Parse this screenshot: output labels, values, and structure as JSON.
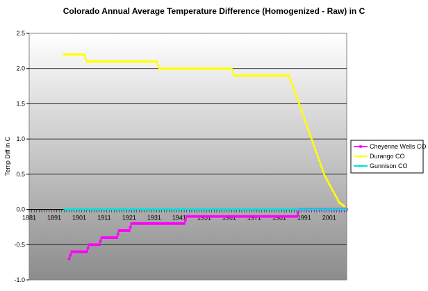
{
  "chart_data": {
    "type": "line",
    "title": "Colorado Annual Average Temperature Difference (Homogenized - Raw) in C",
    "xlabel": "",
    "ylabel": "Temp Diff in C",
    "xlim": [
      1881,
      2008
    ],
    "ylim": [
      -1.0,
      2.5
    ],
    "x_ticks": [
      1881,
      1891,
      1901,
      1911,
      1921,
      1931,
      1941,
      1951,
      1961,
      1971,
      1981,
      1991,
      2001
    ],
    "y_ticks": [
      2.5,
      2.0,
      1.5,
      1.0,
      0.5,
      0.0,
      -0.5,
      -1.0
    ],
    "y_tick_labels": [
      "2.5",
      "2.0",
      "1.5",
      "1.0",
      "0.5",
      "0.0",
      "-0.5",
      "-1.0"
    ],
    "grid": "horizontal",
    "background": "vertical gradient white to gray",
    "legend_position": "right",
    "series": [
      {
        "name": "Cheyenne Wells CO",
        "color": "#ff00ff",
        "marker": "square",
        "points": [
          [
            1897,
            -0.7
          ],
          [
            1898,
            -0.6
          ],
          [
            1904,
            -0.6
          ],
          [
            1905,
            -0.5
          ],
          [
            1909,
            -0.5
          ],
          [
            1910,
            -0.4
          ],
          [
            1916,
            -0.4
          ],
          [
            1917,
            -0.3
          ],
          [
            1921,
            -0.3
          ],
          [
            1922,
            -0.2
          ],
          [
            1943,
            -0.2
          ],
          [
            1944,
            -0.1
          ],
          [
            1988,
            -0.1
          ],
          [
            1989,
            0.0
          ],
          [
            2008,
            0.0
          ]
        ]
      },
      {
        "name": "Durango CO",
        "color": "#ffff00",
        "marker": "triangle",
        "points": [
          [
            1895,
            2.2
          ],
          [
            1903,
            2.2
          ],
          [
            1904,
            2.1
          ],
          [
            1932,
            2.1
          ],
          [
            1933,
            2.0
          ],
          [
            1962,
            2.0
          ],
          [
            1963,
            1.9
          ],
          [
            1985,
            1.9
          ],
          [
            1987,
            1.7
          ],
          [
            1989,
            1.5
          ],
          [
            1991,
            1.3
          ],
          [
            1993,
            1.1
          ],
          [
            1995,
            0.9
          ],
          [
            1997,
            0.7
          ],
          [
            1999,
            0.5
          ],
          [
            2002,
            0.3
          ],
          [
            2005,
            0.1
          ],
          [
            2007,
            0.05
          ]
        ]
      },
      {
        "name": "Gunnison CO",
        "color": "#00e0e0",
        "marker": "x",
        "points": [
          [
            1895,
            0.0
          ],
          [
            2008,
            0.0
          ]
        ]
      }
    ]
  }
}
